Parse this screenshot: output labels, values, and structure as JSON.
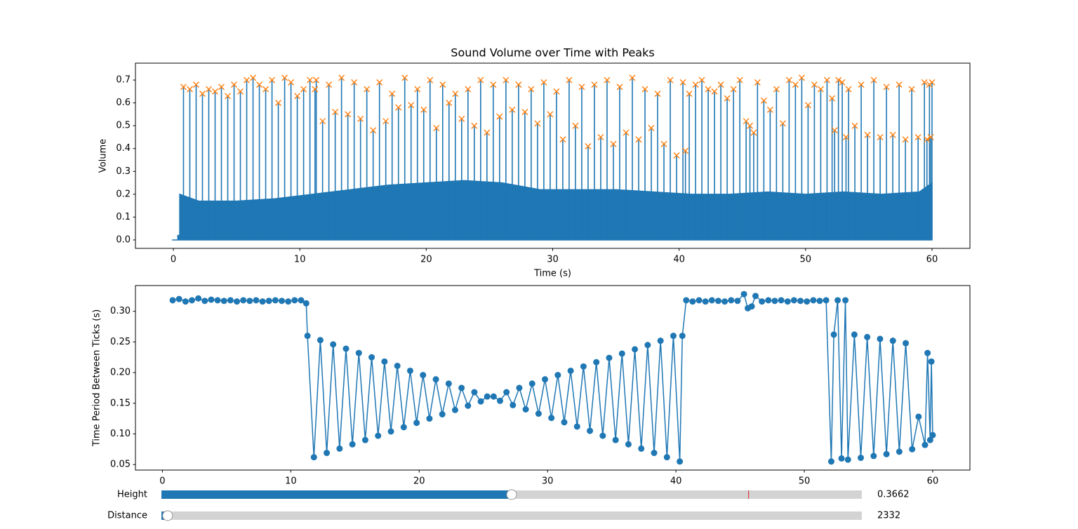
{
  "chart_data": [
    {
      "type": "area",
      "title": "Sound Volume over Time with Peaks",
      "x_label": "Time (s)",
      "y_label": "Volume",
      "xlim": [
        -3,
        63
      ],
      "ylim": [
        -0.037,
        0.774
      ],
      "xticks": [
        0,
        10,
        20,
        30,
        40,
        50,
        60
      ],
      "yticks": [
        {
          "value": 0,
          "label": "0.0"
        },
        0.1,
        0.2,
        0.3,
        0.4,
        0.5,
        0.6,
        0.7
      ],
      "signal": {
        "color": "#1f77b4",
        "x": [
          -0.1,
          0.35,
          0.35,
          0.5,
          0.5,
          2,
          5,
          8,
          11,
          14,
          17,
          20,
          23,
          26,
          29,
          32,
          35,
          38,
          41,
          44,
          47,
          50,
          53,
          56,
          59,
          60,
          60
        ],
        "values": [
          0,
          0,
          0.02,
          0.02,
          0.2,
          0.17,
          0.17,
          0.18,
          0.2,
          0.22,
          0.24,
          0.25,
          0.26,
          0.25,
          0.22,
          0.22,
          0.22,
          0.21,
          0.2,
          0.2,
          0.21,
          0.2,
          0.21,
          0.2,
          0.21,
          0.25,
          0
        ]
      },
      "peaks": {
        "color": "#ff7f0e",
        "marker": "x",
        "x": [
          0.8,
          1.3,
          1.8,
          2.3,
          2.8,
          3.3,
          3.8,
          4.3,
          4.8,
          5.3,
          5.8,
          6.3,
          6.8,
          7.3,
          7.8,
          8.3,
          8.8,
          9.3,
          9.8,
          10.3,
          10.8,
          11.2,
          11.3,
          11.8,
          12.3,
          12.8,
          13.3,
          13.8,
          14.3,
          14.8,
          15.3,
          15.8,
          16.3,
          16.8,
          17.3,
          17.8,
          18.3,
          18.8,
          19.3,
          19.8,
          20.3,
          20.8,
          21.3,
          21.8,
          22.3,
          22.8,
          23.3,
          23.8,
          24.3,
          24.8,
          25.3,
          25.8,
          26.3,
          26.8,
          27.3,
          27.8,
          28.3,
          28.8,
          29.3,
          29.8,
          30.3,
          30.8,
          31.3,
          31.8,
          32.3,
          32.8,
          33.3,
          33.8,
          34.3,
          34.8,
          35.3,
          35.8,
          36.3,
          36.8,
          37.3,
          37.8,
          38.3,
          38.8,
          39.3,
          39.8,
          40.3,
          40.5,
          40.8,
          41.3,
          41.8,
          42.3,
          42.8,
          43.3,
          43.8,
          44.3,
          44.8,
          45.3,
          45.6,
          45.9,
          46.2,
          46.7,
          47.2,
          47.7,
          48.2,
          48.7,
          49.2,
          49.7,
          50.2,
          50.7,
          51.2,
          51.7,
          52.1,
          52.3,
          52.6,
          52.9,
          53.2,
          53.4,
          53.9,
          54.4,
          54.9,
          55.4,
          55.9,
          56.4,
          56.9,
          57.4,
          57.9,
          58.4,
          58.9,
          59.4,
          59.6,
          59.8,
          59.9,
          60.0
        ],
        "values": [
          0.67,
          0.66,
          0.68,
          0.64,
          0.66,
          0.65,
          0.67,
          0.63,
          0.68,
          0.65,
          0.7,
          0.71,
          0.68,
          0.66,
          0.7,
          0.6,
          0.71,
          0.69,
          0.63,
          0.66,
          0.7,
          0.66,
          0.7,
          0.52,
          0.68,
          0.56,
          0.71,
          0.55,
          0.69,
          0.53,
          0.66,
          0.48,
          0.69,
          0.52,
          0.64,
          0.58,
          0.71,
          0.59,
          0.66,
          0.57,
          0.7,
          0.49,
          0.68,
          0.6,
          0.64,
          0.53,
          0.66,
          0.5,
          0.7,
          0.47,
          0.68,
          0.54,
          0.7,
          0.57,
          0.68,
          0.56,
          0.66,
          0.51,
          0.69,
          0.55,
          0.65,
          0.44,
          0.7,
          0.5,
          0.67,
          0.41,
          0.68,
          0.45,
          0.7,
          0.42,
          0.67,
          0.47,
          0.71,
          0.44,
          0.66,
          0.49,
          0.64,
          0.42,
          0.7,
          0.37,
          0.69,
          0.39,
          0.64,
          0.68,
          0.7,
          0.66,
          0.65,
          0.68,
          0.62,
          0.66,
          0.7,
          0.52,
          0.5,
          0.47,
          0.69,
          0.61,
          0.57,
          0.66,
          0.51,
          0.7,
          0.68,
          0.71,
          0.59,
          0.68,
          0.66,
          0.7,
          0.62,
          0.48,
          0.7,
          0.69,
          0.45,
          0.66,
          0.5,
          0.68,
          0.46,
          0.7,
          0.45,
          0.67,
          0.46,
          0.68,
          0.44,
          0.66,
          0.45,
          0.69,
          0.44,
          0.68,
          0.45,
          0.69
        ]
      }
    },
    {
      "type": "line",
      "x_label": "Time (s)",
      "y_label": "Time Period Between Ticks (s)",
      "color": "#1f77b4",
      "marker": "o",
      "xlim": [
        -2.1,
        62.9
      ],
      "ylim": [
        0.041,
        0.342
      ],
      "xticks": [
        0,
        10,
        20,
        30,
        40,
        50,
        60
      ],
      "yticks": [
        0.05,
        {
          "value": 0.1,
          "label": "0.10"
        },
        0.15,
        {
          "value": 0.2,
          "label": "0.20"
        },
        0.25,
        {
          "value": 0.3,
          "label": "0.30"
        }
      ],
      "x": [
        0.8,
        1.3,
        1.8,
        2.3,
        2.8,
        3.3,
        3.8,
        4.3,
        4.8,
        5.3,
        5.8,
        6.3,
        6.8,
        7.3,
        7.8,
        8.3,
        8.8,
        9.3,
        9.8,
        10.3,
        10.8,
        11.2,
        11.3,
        11.8,
        12.3,
        12.8,
        13.3,
        13.8,
        14.3,
        14.8,
        15.3,
        15.8,
        16.3,
        16.8,
        17.3,
        17.8,
        18.3,
        18.8,
        19.3,
        19.8,
        20.3,
        20.8,
        21.3,
        21.8,
        22.3,
        22.8,
        23.3,
        23.8,
        24.3,
        24.8,
        25.3,
        25.8,
        26.3,
        26.8,
        27.3,
        27.8,
        28.3,
        28.8,
        29.3,
        29.8,
        30.3,
        30.8,
        31.3,
        31.8,
        32.3,
        32.8,
        33.3,
        33.8,
        34.3,
        34.8,
        35.3,
        35.8,
        36.3,
        36.8,
        37.3,
        37.8,
        38.3,
        38.8,
        39.3,
        39.8,
        40.3,
        40.5,
        40.8,
        41.3,
        41.8,
        42.3,
        42.8,
        43.3,
        43.8,
        44.3,
        44.8,
        45.3,
        45.6,
        45.9,
        46.2,
        46.7,
        47.2,
        47.7,
        48.2,
        48.7,
        49.2,
        49.7,
        50.2,
        50.7,
        51.2,
        51.7,
        52.1,
        52.3,
        52.6,
        52.9,
        53.2,
        53.4,
        53.9,
        54.4,
        54.9,
        55.4,
        55.9,
        56.4,
        56.9,
        57.4,
        57.9,
        58.4,
        58.9,
        59.4,
        59.6,
        59.8,
        59.9,
        60.0
      ],
      "values": [
        0.318,
        0.32,
        0.316,
        0.318,
        0.321,
        0.317,
        0.319,
        0.318,
        0.317,
        0.318,
        0.316,
        0.318,
        0.317,
        0.318,
        0.316,
        0.317,
        0.318,
        0.317,
        0.316,
        0.318,
        0.318,
        0.313,
        0.26,
        0.062,
        0.253,
        0.069,
        0.246,
        0.076,
        0.239,
        0.083,
        0.232,
        0.09,
        0.225,
        0.097,
        0.218,
        0.104,
        0.211,
        0.111,
        0.203,
        0.118,
        0.196,
        0.125,
        0.189,
        0.132,
        0.182,
        0.139,
        0.175,
        0.146,
        0.168,
        0.153,
        0.161,
        0.161,
        0.154,
        0.168,
        0.147,
        0.175,
        0.14,
        0.182,
        0.133,
        0.189,
        0.126,
        0.196,
        0.119,
        0.203,
        0.112,
        0.21,
        0.105,
        0.217,
        0.097,
        0.224,
        0.09,
        0.231,
        0.083,
        0.238,
        0.076,
        0.245,
        0.069,
        0.252,
        0.062,
        0.26,
        0.055,
        0.26,
        0.318,
        0.316,
        0.318,
        0.316,
        0.318,
        0.317,
        0.316,
        0.318,
        0.317,
        0.328,
        0.305,
        0.308,
        0.325,
        0.316,
        0.318,
        0.317,
        0.318,
        0.316,
        0.318,
        0.317,
        0.316,
        0.318,
        0.317,
        0.318,
        0.055,
        0.262,
        0.318,
        0.06,
        0.318,
        0.058,
        0.262,
        0.061,
        0.258,
        0.064,
        0.255,
        0.067,
        0.252,
        0.071,
        0.248,
        0.075,
        0.128,
        0.082,
        0.232,
        0.09,
        0.218,
        0.098
      ]
    }
  ],
  "controls": {
    "sliders": [
      {
        "label": "Height",
        "value": 0.3662,
        "min": 0,
        "max": 0.7324,
        "init": 0.614,
        "color": "#1f77b4"
      },
      {
        "label": "Distance",
        "value": 2332,
        "min": 1,
        "max": 264600,
        "init": 1000,
        "color": "#1f77b4"
      }
    ]
  }
}
